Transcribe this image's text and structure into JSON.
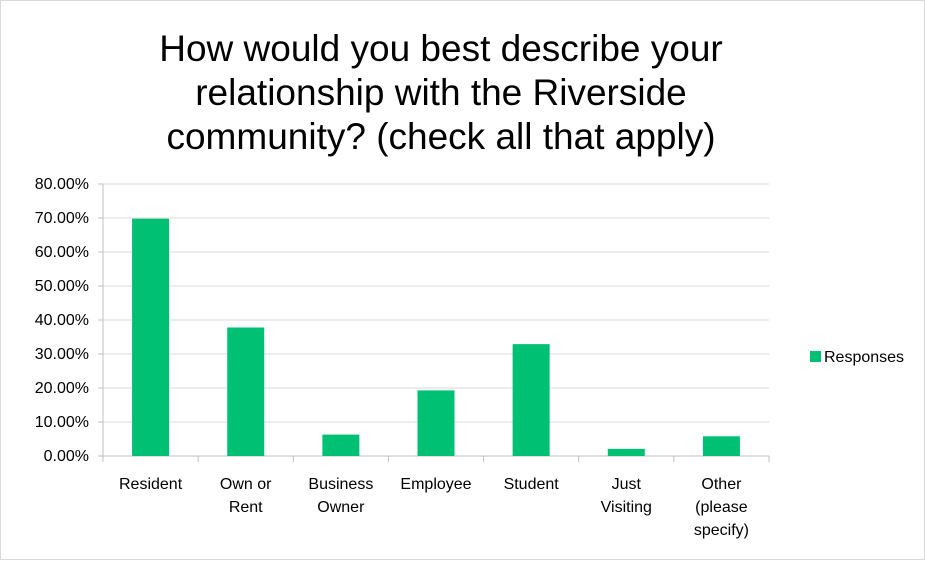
{
  "chart_data": {
    "type": "bar",
    "title": "How would you best describe your relationship with the Riverside community? (check all that apply)",
    "title_lines": [
      "How would you best describe your",
      "relationship with the Riverside",
      "community? (check all that apply)"
    ],
    "categories": [
      "Resident",
      "Own or Rent",
      "Business Owner",
      "Employee",
      "Student",
      "Just Visiting",
      "Other (please specify)"
    ],
    "category_lines": [
      [
        "Resident"
      ],
      [
        "Own or",
        "Rent"
      ],
      [
        "Business",
        "Owner"
      ],
      [
        "Employee"
      ],
      [
        "Student"
      ],
      [
        "Just",
        "Visiting"
      ],
      [
        "Other",
        "(please",
        "specify)"
      ]
    ],
    "series": [
      {
        "name": "Responses",
        "values": [
          69.8,
          37.8,
          6.3,
          19.3,
          32.9,
          2.1,
          5.8
        ],
        "color": "#00C073"
      }
    ],
    "xlabel": "",
    "ylabel": "",
    "ylim": [
      0,
      80
    ],
    "yticks": [
      0,
      10,
      20,
      30,
      40,
      50,
      60,
      70,
      80
    ],
    "ytick_labels": [
      "0.00%",
      "10.00%",
      "20.00%",
      "30.00%",
      "40.00%",
      "50.00%",
      "60.00%",
      "70.00%",
      "80.00%"
    ],
    "grid": true,
    "legend_position": "right",
    "colors": {
      "bar": "#00C073",
      "grid": "#d9d9d9",
      "axis": "#bfbfbf"
    }
  }
}
